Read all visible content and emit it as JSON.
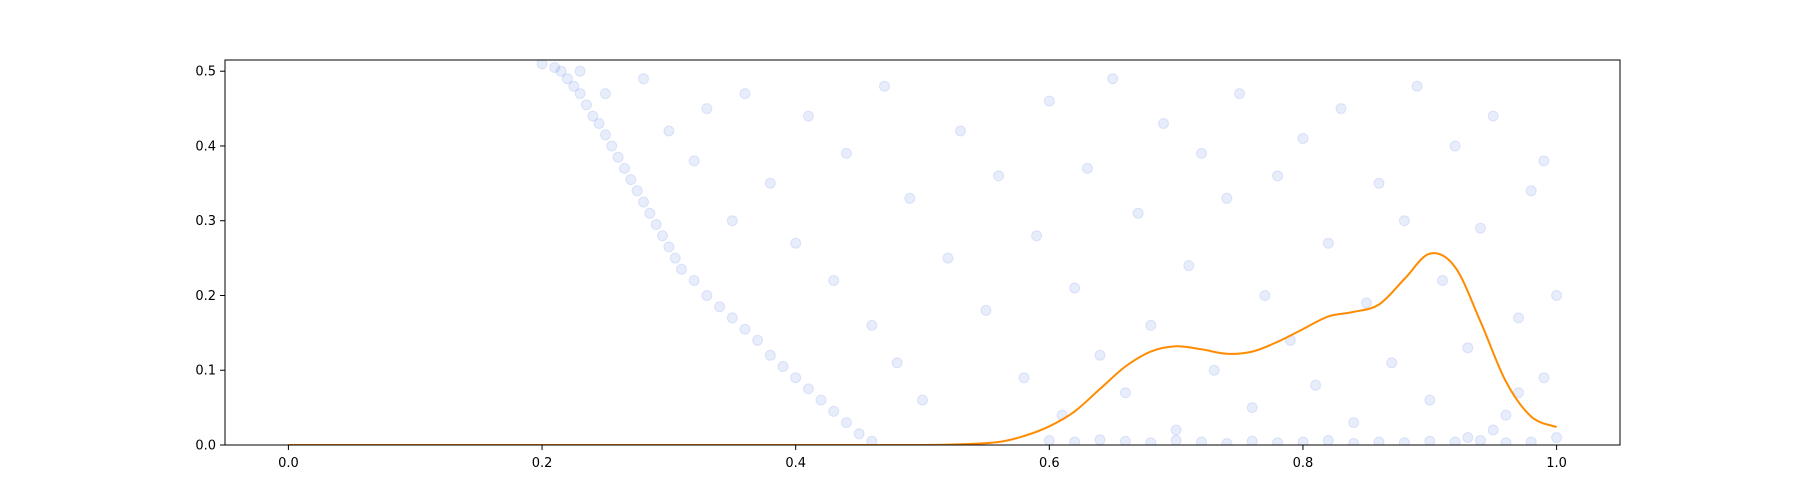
{
  "chart_data": {
    "type": "scatter",
    "title": "",
    "xlabel": "",
    "ylabel": "",
    "xlim": [
      -0.05,
      1.05
    ],
    "ylim": [
      0,
      0.515
    ],
    "xticks": [
      0.0,
      0.2,
      0.4,
      0.6,
      0.8,
      1.0
    ],
    "xtick_labels": [
      "0.0",
      "0.2",
      "0.4",
      "0.6",
      "0.8",
      "1.0"
    ],
    "yticks": [
      0.0,
      0.1,
      0.2,
      0.3,
      0.4,
      0.5
    ],
    "ytick_labels": [
      "0.0",
      "0.1",
      "0.2",
      "0.3",
      "0.4",
      "0.5"
    ],
    "grid": false,
    "legend": "none",
    "series": [
      {
        "kind": "scatter",
        "color": "#4169e1",
        "opacity": 0.12,
        "approx_point_count": 2200,
        "points": [
          [
            0.2,
            0.51
          ],
          [
            0.21,
            0.505
          ],
          [
            0.215,
            0.5
          ],
          [
            0.22,
            0.49
          ],
          [
            0.225,
            0.48
          ],
          [
            0.23,
            0.47
          ],
          [
            0.235,
            0.455
          ],
          [
            0.24,
            0.44
          ],
          [
            0.245,
            0.43
          ],
          [
            0.25,
            0.415
          ],
          [
            0.255,
            0.4
          ],
          [
            0.26,
            0.385
          ],
          [
            0.265,
            0.37
          ],
          [
            0.27,
            0.355
          ],
          [
            0.275,
            0.34
          ],
          [
            0.28,
            0.325
          ],
          [
            0.285,
            0.31
          ],
          [
            0.29,
            0.295
          ],
          [
            0.295,
            0.28
          ],
          [
            0.3,
            0.265
          ],
          [
            0.305,
            0.25
          ],
          [
            0.31,
            0.235
          ],
          [
            0.32,
            0.22
          ],
          [
            0.33,
            0.2
          ],
          [
            0.34,
            0.185
          ],
          [
            0.35,
            0.17
          ],
          [
            0.36,
            0.155
          ],
          [
            0.37,
            0.14
          ],
          [
            0.38,
            0.12
          ],
          [
            0.39,
            0.105
          ],
          [
            0.4,
            0.09
          ],
          [
            0.41,
            0.075
          ],
          [
            0.42,
            0.06
          ],
          [
            0.43,
            0.045
          ],
          [
            0.44,
            0.03
          ],
          [
            0.45,
            0.015
          ],
          [
            0.46,
            0.005
          ],
          [
            0.23,
            0.5
          ],
          [
            0.25,
            0.47
          ],
          [
            0.28,
            0.49
          ],
          [
            0.3,
            0.42
          ],
          [
            0.32,
            0.38
          ],
          [
            0.33,
            0.45
          ],
          [
            0.35,
            0.3
          ],
          [
            0.36,
            0.47
          ],
          [
            0.38,
            0.35
          ],
          [
            0.4,
            0.27
          ],
          [
            0.41,
            0.44
          ],
          [
            0.43,
            0.22
          ],
          [
            0.44,
            0.39
          ],
          [
            0.46,
            0.16
          ],
          [
            0.47,
            0.48
          ],
          [
            0.48,
            0.11
          ],
          [
            0.49,
            0.33
          ],
          [
            0.5,
            0.06
          ],
          [
            0.52,
            0.25
          ],
          [
            0.53,
            0.42
          ],
          [
            0.55,
            0.18
          ],
          [
            0.56,
            0.36
          ],
          [
            0.58,
            0.09
          ],
          [
            0.59,
            0.28
          ],
          [
            0.6,
            0.46
          ],
          [
            0.61,
            0.04
          ],
          [
            0.62,
            0.21
          ],
          [
            0.63,
            0.37
          ],
          [
            0.64,
            0.12
          ],
          [
            0.65,
            0.49
          ],
          [
            0.66,
            0.07
          ],
          [
            0.67,
            0.31
          ],
          [
            0.68,
            0.16
          ],
          [
            0.69,
            0.43
          ],
          [
            0.7,
            0.02
          ],
          [
            0.71,
            0.24
          ],
          [
            0.72,
            0.39
          ],
          [
            0.73,
            0.1
          ],
          [
            0.74,
            0.33
          ],
          [
            0.75,
            0.47
          ],
          [
            0.76,
            0.05
          ],
          [
            0.77,
            0.2
          ],
          [
            0.78,
            0.36
          ],
          [
            0.79,
            0.14
          ],
          [
            0.8,
            0.41
          ],
          [
            0.81,
            0.08
          ],
          [
            0.82,
            0.27
          ],
          [
            0.83,
            0.45
          ],
          [
            0.84,
            0.03
          ],
          [
            0.85,
            0.19
          ],
          [
            0.86,
            0.35
          ],
          [
            0.87,
            0.11
          ],
          [
            0.88,
            0.3
          ],
          [
            0.89,
            0.48
          ],
          [
            0.9,
            0.06
          ],
          [
            0.91,
            0.22
          ],
          [
            0.92,
            0.4
          ],
          [
            0.93,
            0.13
          ],
          [
            0.94,
            0.29
          ],
          [
            0.95,
            0.44
          ],
          [
            0.96,
            0.04
          ],
          [
            0.97,
            0.17
          ],
          [
            0.98,
            0.34
          ],
          [
            0.99,
            0.09
          ],
          [
            1.0,
            0.01
          ],
          [
            1.0,
            0.2
          ],
          [
            0.99,
            0.38
          ],
          [
            0.97,
            0.07
          ],
          [
            0.95,
            0.02
          ],
          [
            0.93,
            0.01
          ],
          [
            0.9,
            0.005
          ],
          [
            0.88,
            0.003
          ],
          [
            0.86,
            0.004
          ],
          [
            0.84,
            0.002
          ],
          [
            0.82,
            0.006
          ],
          [
            0.8,
            0.004
          ],
          [
            0.78,
            0.003
          ],
          [
            0.76,
            0.005
          ],
          [
            0.74,
            0.002
          ],
          [
            0.72,
            0.004
          ],
          [
            0.7,
            0.006
          ],
          [
            0.68,
            0.003
          ],
          [
            0.66,
            0.005
          ],
          [
            0.64,
            0.007
          ],
          [
            0.62,
            0.004
          ],
          [
            0.6,
            0.006
          ],
          [
            0.98,
            0.004
          ],
          [
            0.96,
            0.003
          ],
          [
            0.94,
            0.006
          ],
          [
            0.92,
            0.004
          ]
        ]
      },
      {
        "kind": "line",
        "color": "#ff8c00",
        "x": [
          0.0,
          0.1,
          0.2,
          0.3,
          0.4,
          0.45,
          0.5,
          0.53,
          0.56,
          0.58,
          0.6,
          0.62,
          0.64,
          0.66,
          0.68,
          0.7,
          0.72,
          0.74,
          0.76,
          0.78,
          0.8,
          0.82,
          0.84,
          0.86,
          0.88,
          0.9,
          0.92,
          0.94,
          0.96,
          0.98,
          1.0
        ],
        "y": [
          0.0,
          0.0,
          0.0,
          0.0,
          0.0,
          0.0,
          0.0,
          0.001,
          0.004,
          0.012,
          0.025,
          0.045,
          0.075,
          0.105,
          0.125,
          0.132,
          0.128,
          0.122,
          0.125,
          0.138,
          0.155,
          0.172,
          0.178,
          0.188,
          0.222,
          0.256,
          0.238,
          0.165,
          0.085,
          0.038,
          0.024
        ]
      }
    ]
  }
}
